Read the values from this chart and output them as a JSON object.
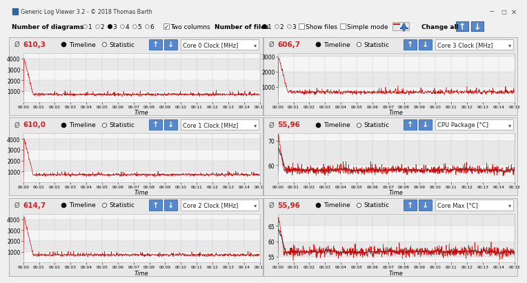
{
  "title_bar": "Generic Log Viewer 3.2 - © 2018 Thomas Barth",
  "panels": [
    {
      "title": "Core 0 Clock [MHz]",
      "avg": "610,3",
      "ylim": [
        0,
        4500
      ],
      "yticks": [
        1000,
        2000,
        3000,
        4000
      ],
      "peak": 4000,
      "steady": 700,
      "is_temp": false
    },
    {
      "title": "Core 3 Clock [MHz]",
      "avg": "606,7",
      "ylim": [
        0,
        3200
      ],
      "yticks": [
        1000,
        2000,
        3000
      ],
      "peak": 2900,
      "steady": 650,
      "is_temp": false
    },
    {
      "title": "Core 1 Clock [MHz]",
      "avg": "610,0",
      "ylim": [
        0,
        4500
      ],
      "yticks": [
        1000,
        2000,
        3000,
        4000
      ],
      "peak": 4000,
      "steady": 700,
      "is_temp": false
    },
    {
      "title": "CPU Package [°C]",
      "avg": "55,96",
      "ylim": [
        53,
        73
      ],
      "yticks": [
        60,
        70
      ],
      "peak": 72,
      "steady": 58.0,
      "is_temp": true
    },
    {
      "title": "Core 2 Clock [MHz]",
      "avg": "614,7",
      "ylim": [
        0,
        4500
      ],
      "yticks": [
        1000,
        2000,
        3000,
        4000
      ],
      "peak": 4200,
      "steady": 700,
      "is_temp": false
    },
    {
      "title": "Core Max [°C]",
      "avg": "55,96",
      "ylim": [
        53,
        69
      ],
      "yticks": [
        55,
        60,
        65
      ],
      "peak": 68,
      "steady": 56.5,
      "is_temp": true
    }
  ],
  "bg_color": "#f0f0f0",
  "panel_bg": "#e8e8e8",
  "plot_bg_light": "#f0f0f0",
  "plot_bg_dark": "#e0e0e0",
  "line_color": "#cc0000",
  "black_line_color": "#1a1a1a",
  "time_labels": [
    "00:00",
    "00:01",
    "00:02",
    "00:03",
    "00:04",
    "00:05",
    "00:06",
    "00:07",
    "00:08",
    "00:09",
    "00:10",
    "00:11",
    "00:12",
    "00:13",
    "00:14",
    "00:15"
  ],
  "titlebar_bg": "#c0c0c0",
  "toolbar_bg": "#f0f0f0",
  "header_bg": "#e0e0e0",
  "arrow_color": "#5588cc",
  "arrow_edge": "#3366aa",
  "n_points": 920
}
